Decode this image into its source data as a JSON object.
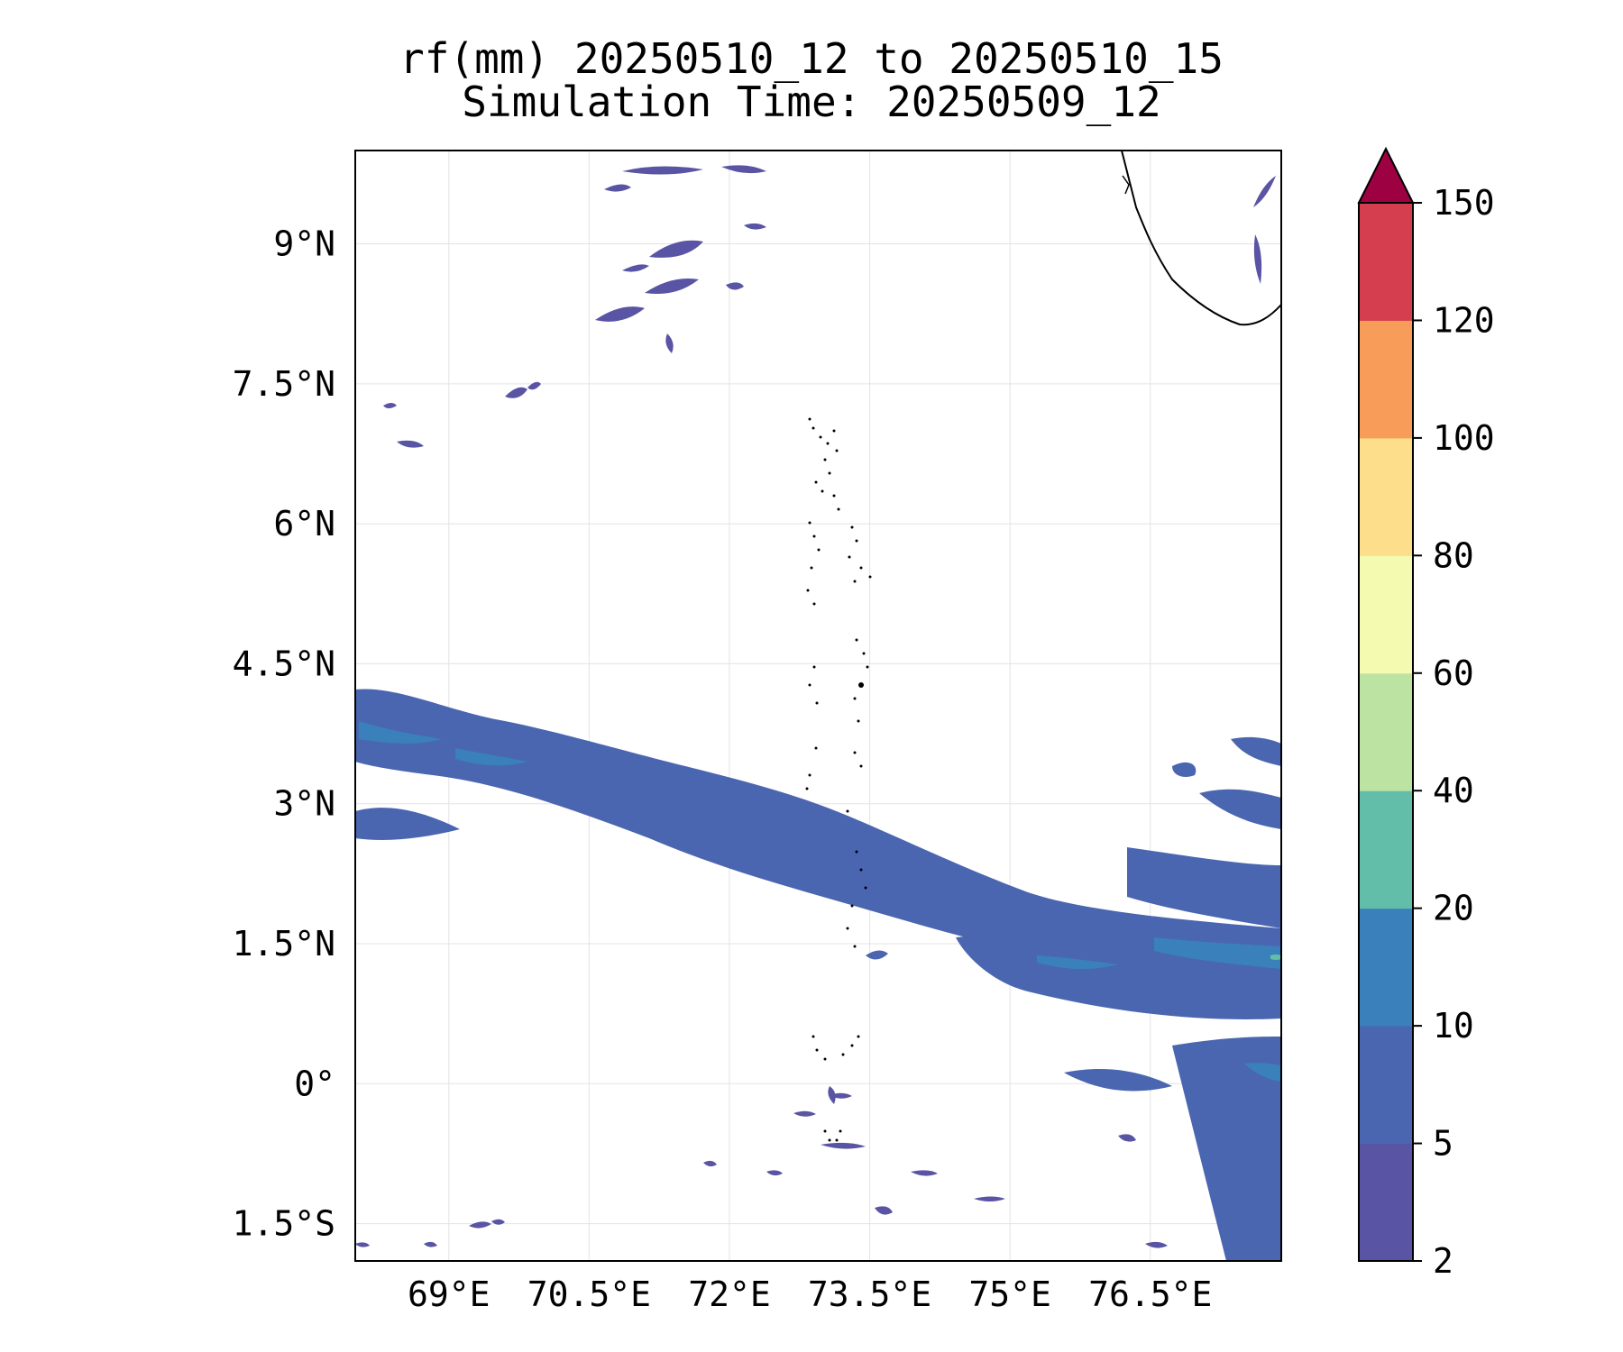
{
  "title_line1": "rf(mm) 20250510_12 to 20250510_15",
  "title_line2": "Simulation Time: 20250509_12",
  "map": {
    "lon_range": [
      68.0,
      77.9
    ],
    "lat_range": [
      -1.9,
      10.0
    ],
    "lon_ticks": [
      {
        "value": 69.0,
        "label": "69°E"
      },
      {
        "value": 70.5,
        "label": "70.5°E"
      },
      {
        "value": 72.0,
        "label": "72°E"
      },
      {
        "value": 73.5,
        "label": "73.5°E"
      },
      {
        "value": 75.0,
        "label": "75°E"
      },
      {
        "value": 76.5,
        "label": "76.5°E"
      }
    ],
    "lat_ticks": [
      {
        "value": 9.0,
        "label": "9°N"
      },
      {
        "value": 7.5,
        "label": "7.5°N"
      },
      {
        "value": 6.0,
        "label": "6°N"
      },
      {
        "value": 4.5,
        "label": "4.5°N"
      },
      {
        "value": 3.0,
        "label": "3°N"
      },
      {
        "value": 1.5,
        "label": "1.5°N"
      },
      {
        "value": 0.0,
        "label": "0°"
      },
      {
        "value": -1.5,
        "label": "1.5°S"
      }
    ],
    "gridlines": true
  },
  "colorbar": {
    "levels": [
      "2",
      "5",
      "10",
      "20",
      "40",
      "60",
      "80",
      "100",
      "120",
      "150"
    ],
    "colors": [
      "#5954a3",
      "#4a66b0",
      "#3a80ba",
      "#63bea9",
      "#bde3a2",
      "#f4fab0",
      "#fcde8b",
      "#f89d59",
      "#d53e4f"
    ],
    "extend_color": "#9e0142",
    "extend": "max"
  }
}
